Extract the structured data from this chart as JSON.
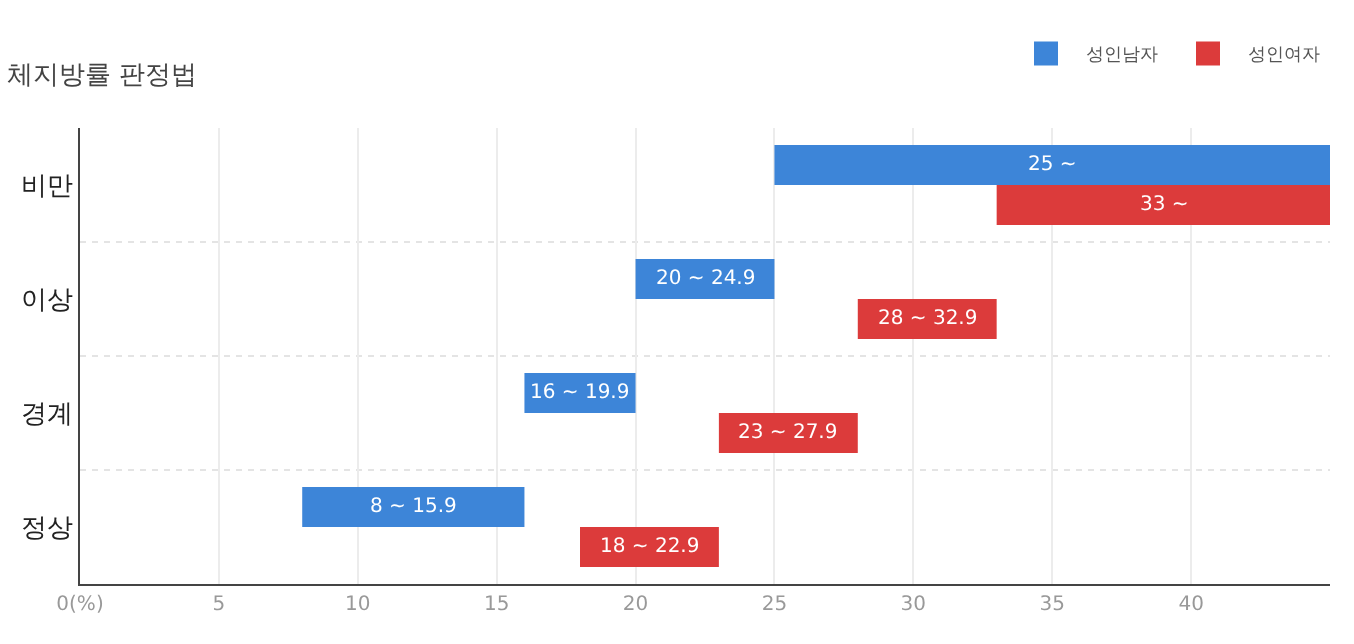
{
  "chart_data": {
    "type": "bar",
    "orientation": "horizontal",
    "title": "체지방률 판정법",
    "categories": [
      "비만",
      "이상",
      "경계",
      "정상"
    ],
    "series": [
      {
        "name": "성인남자",
        "color": "#3d85d8",
        "base": [
          25,
          20,
          16,
          8
        ],
        "values": [
          20,
          5,
          4,
          8
        ]
      },
      {
        "name": "성인여자",
        "color": "#dc3b3b",
        "base": [
          33,
          28,
          23,
          18
        ],
        "values": [
          12,
          5,
          5,
          5
        ]
      }
    ],
    "annotations": [
      {
        "text": "25 ~",
        "x": 35,
        "y": "비만"
      },
      {
        "text": "20 ~ 24.9",
        "x": 22.5,
        "y": "이상"
      },
      {
        "text": "16 ~ 19.9",
        "x": 18,
        "y": "경계"
      },
      {
        "text": "8 ~ 15.9",
        "x": 12,
        "y": "정상"
      },
      {
        "text": "33 ~",
        "x": 39,
        "y": "비만"
      },
      {
        "text": "28 ~ 32.9",
        "x": 30.5,
        "y": "이상"
      },
      {
        "text": "23 ~ 27.9",
        "x": 25.5,
        "y": "경계"
      },
      {
        "text": "18 ~ 22.9",
        "x": 20.5,
        "y": "정상"
      }
    ],
    "xlim": [
      0,
      45
    ],
    "xticks": [
      {
        "value": 0,
        "label": "0(%)"
      },
      5,
      10,
      15,
      20,
      25,
      30,
      35,
      40
    ],
    "grid": true,
    "legend": "top right"
  }
}
